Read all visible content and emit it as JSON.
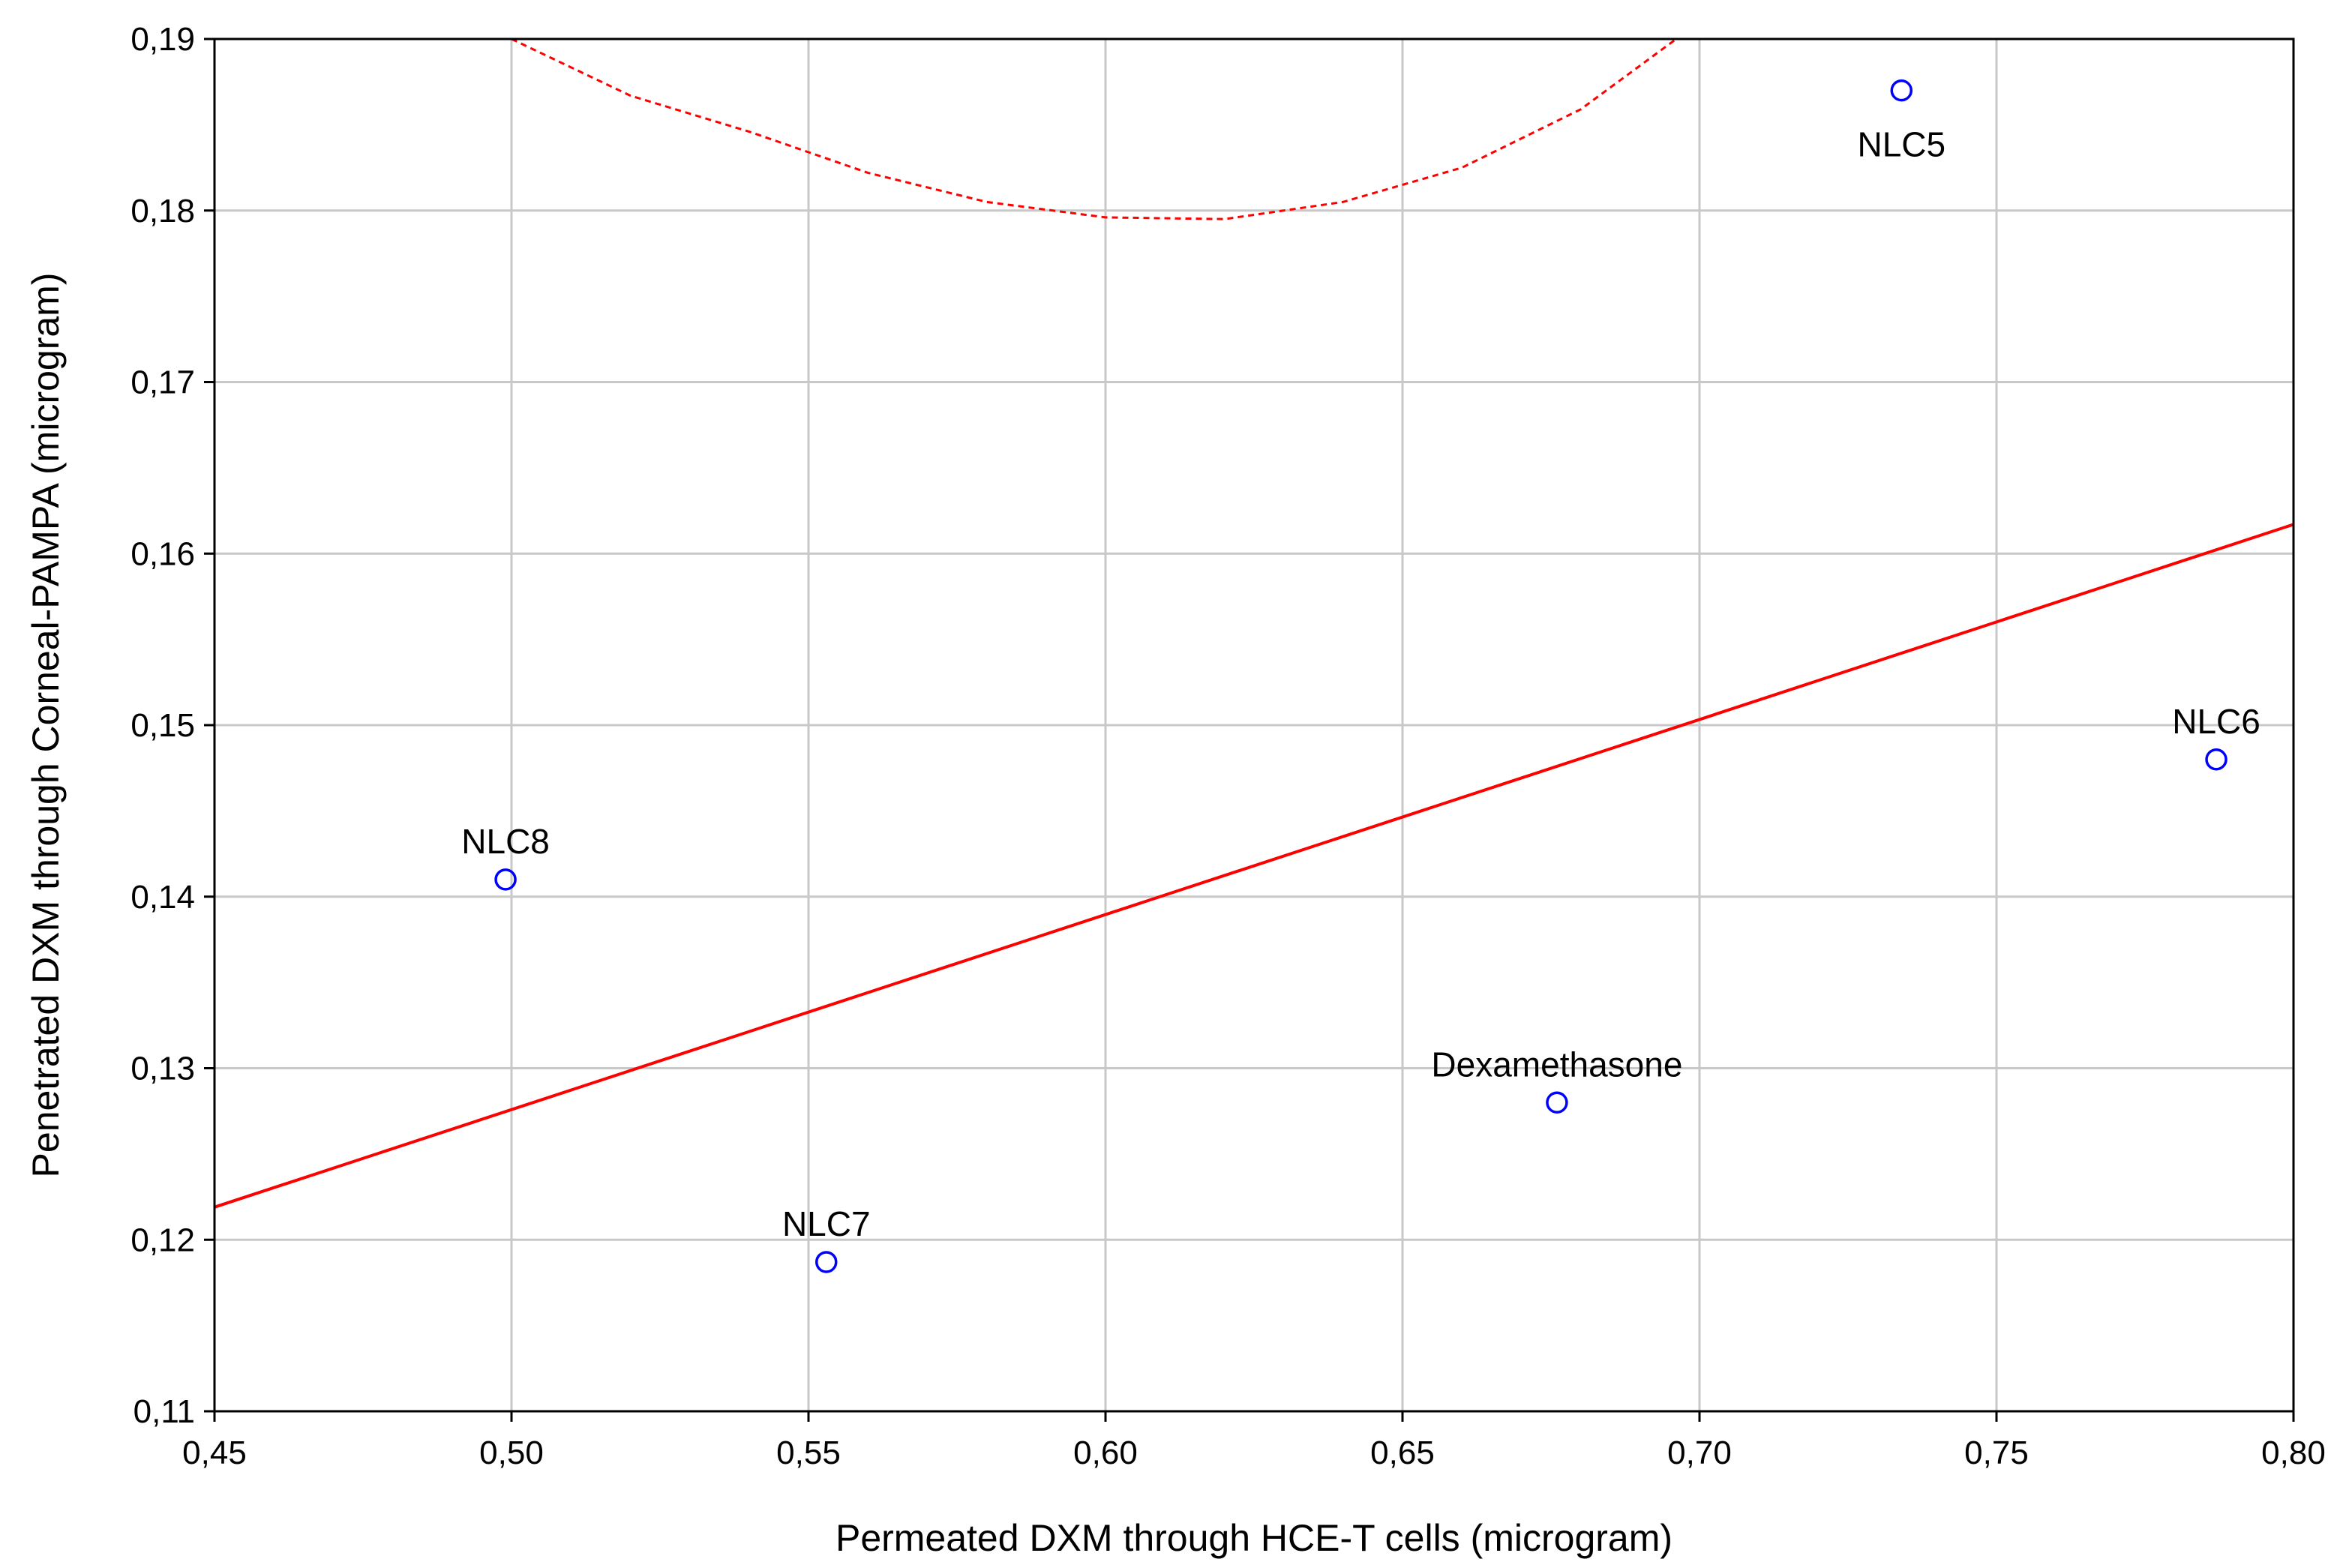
{
  "chart_data": {
    "type": "scatter",
    "title": "",
    "xlabel": "Permeated DXM through HCE-T cells (microgram)",
    "ylabel": "Penetrated DXM through Corneal-PAMPA (microgram)",
    "xlim": [
      0.45,
      0.8
    ],
    "ylim": [
      0.11,
      0.19
    ],
    "x_ticks": [
      0.45,
      0.5,
      0.55,
      0.6,
      0.65,
      0.7,
      0.75,
      0.8
    ],
    "x_tick_labels": [
      "0,45",
      "0,50",
      "0,55",
      "0,60",
      "0,65",
      "0,70",
      "0,75",
      "0,80"
    ],
    "y_ticks": [
      0.11,
      0.12,
      0.13,
      0.14,
      0.15,
      0.16,
      0.17,
      0.18,
      0.19
    ],
    "y_tick_labels": [
      "0,11",
      "0,12",
      "0,13",
      "0,14",
      "0,15",
      "0,16",
      "0,17",
      "0,18",
      "0,19"
    ],
    "grid": true,
    "points": [
      {
        "label": "NLC5",
        "x": 0.734,
        "y": 0.187,
        "label_pos": "below"
      },
      {
        "label": "NLC6",
        "x": 0.787,
        "y": 0.148,
        "label_pos": "above"
      },
      {
        "label": "NLC8",
        "x": 0.499,
        "y": 0.141,
        "label_pos": "above"
      },
      {
        "label": "Dexamethasone",
        "x": 0.676,
        "y": 0.128,
        "label_pos": "above"
      },
      {
        "label": "NLC7",
        "x": 0.553,
        "y": 0.1187,
        "label_pos": "above"
      }
    ],
    "regression_line": {
      "x": [
        0.45,
        0.8
      ],
      "y": [
        0.1219,
        0.1617
      ],
      "style": "solid"
    },
    "confidence_band_upper": {
      "x": [
        0.5,
        0.52,
        0.54,
        0.56,
        0.58,
        0.6,
        0.62,
        0.64,
        0.66,
        0.68,
        0.7
      ],
      "y": [
        0.19,
        0.1867,
        0.1846,
        0.1822,
        0.1805,
        0.1796,
        0.1795,
        0.1805,
        0.1825,
        0.1859,
        0.191
      ],
      "style": "dashed"
    },
    "colors": {
      "points": "#0000ff",
      "line": "#ff0000",
      "grid": "#c8c8c8",
      "axis": "#000000"
    }
  }
}
